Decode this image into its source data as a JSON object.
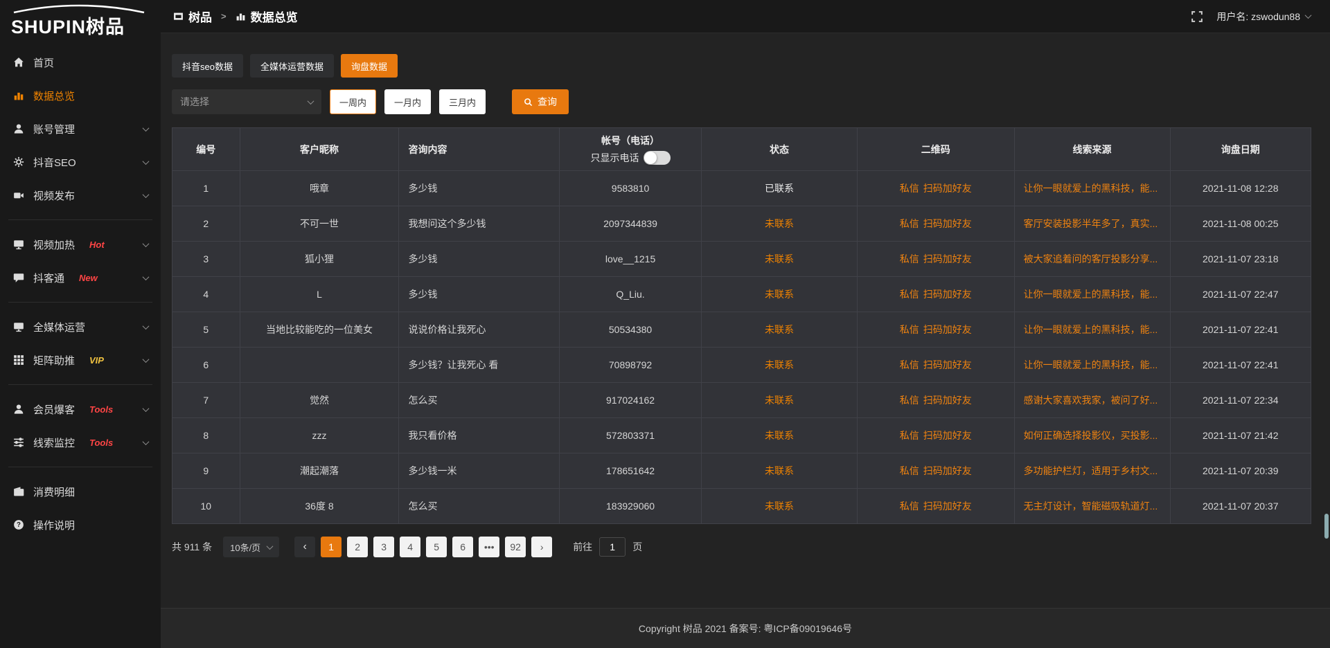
{
  "sidebar": {
    "logo": "SHUPIN树品",
    "items": [
      {
        "label": "首页",
        "icon": "home-icon"
      },
      {
        "label": "数据总览",
        "icon": "bar-chart-icon",
        "active": true
      },
      {
        "label": "账号管理",
        "icon": "user-icon",
        "chevron": true
      },
      {
        "label": "抖音SEO",
        "icon": "gear-icon",
        "chevron": true
      },
      {
        "label": "视频发布",
        "icon": "camera-icon",
        "chevron": true,
        "divider_after": true
      },
      {
        "label": "视频加热",
        "icon": "monitor-icon",
        "badge": "Hot",
        "badge_color": "#ff4545",
        "chevron": true
      },
      {
        "label": "抖客通",
        "icon": "chat-icon",
        "badge": "New",
        "badge_color": "#ff4545",
        "chevron": true,
        "divider_after": true
      },
      {
        "label": "全媒体运营",
        "icon": "monitor-icon",
        "chevron": true
      },
      {
        "label": "矩阵助推",
        "icon": "grid-icon",
        "badge": "VIP",
        "badge_color": "#f0c240",
        "chevron": true,
        "divider_after": true
      },
      {
        "label": "会员爆客",
        "icon": "user-icon",
        "badge": "Tools",
        "badge_color": "#ff4545",
        "chevron": true
      },
      {
        "label": "线索监控",
        "icon": "sliders-icon",
        "badge": "Tools",
        "badge_color": "#ff4545",
        "chevron": true,
        "divider_after": true
      },
      {
        "label": "消费明细",
        "icon": "wallet-icon"
      },
      {
        "label": "操作说明",
        "icon": "question-icon"
      }
    ]
  },
  "topbar": {
    "breadcrumb": [
      {
        "icon": "app-window-icon",
        "label": "树品"
      },
      {
        "icon": "bar-chart-icon",
        "label": "数据总览"
      }
    ],
    "separator": ">",
    "username": "用户名: zswodun88"
  },
  "tabs": [
    {
      "label": "抖音seo数据"
    },
    {
      "label": "全媒体运营数据"
    },
    {
      "label": "询盘数据",
      "active": true
    }
  ],
  "filters": {
    "select_placeholder": "请选择",
    "periods": [
      {
        "label": "一周内",
        "selected": true
      },
      {
        "label": "一月内"
      },
      {
        "label": "三月内"
      }
    ],
    "query_label": "查询"
  },
  "table": {
    "columns": [
      "编号",
      "客户昵称",
      "咨询内容",
      "帐号（电话）",
      "状态",
      "二维码",
      "线索来源",
      "询盘日期"
    ],
    "phone_toggle_label": "只显示电话",
    "qr_links": [
      "私信",
      "扫码加好友"
    ],
    "rows": [
      {
        "id": "1",
        "nickname": "哦章",
        "content": "多少钱",
        "account": "9583810",
        "status": "已联系",
        "contacted": true,
        "source": "让你一眼就爱上的黑科技，能...",
        "date": "2021-11-08 12:28"
      },
      {
        "id": "2",
        "nickname": "不可一世",
        "content": "我想问这个多少钱",
        "account": "2097344839",
        "status": "未联系",
        "contacted": false,
        "source": "客厅安装投影半年多了，真实...",
        "date": "2021-11-08 00:25"
      },
      {
        "id": "3",
        "nickname": "狐小狸",
        "content": "多少钱",
        "account": "love__1215",
        "status": "未联系",
        "contacted": false,
        "source": "被大家追着问的客厅投影分享...",
        "date": "2021-11-07 23:18"
      },
      {
        "id": "4",
        "nickname": "L",
        "content": "多少钱",
        "account": "Q_Liu.",
        "status": "未联系",
        "contacted": false,
        "source": "让你一眼就爱上的黑科技，能...",
        "date": "2021-11-07 22:47"
      },
      {
        "id": "5",
        "nickname": "当地比较能吃的一位美女",
        "content": "说说价格让我死心",
        "account": "50534380",
        "status": "未联系",
        "contacted": false,
        "source": "让你一眼就爱上的黑科技，能...",
        "date": "2021-11-07 22:41"
      },
      {
        "id": "6",
        "nickname": "",
        "content": "多少钱？让我死心 看",
        "account": "70898792",
        "status": "未联系",
        "contacted": false,
        "source": "让你一眼就爱上的黑科技，能...",
        "date": "2021-11-07 22:41"
      },
      {
        "id": "7",
        "nickname": "觉然",
        "content": "怎么买",
        "account": "917024162",
        "status": "未联系",
        "contacted": false,
        "source": "感谢大家喜欢我家，被问了好...",
        "date": "2021-11-07 22:34"
      },
      {
        "id": "8",
        "nickname": "zzz",
        "content": "我只看价格",
        "account": "572803371",
        "status": "未联系",
        "contacted": false,
        "source": "如何正确选择投影仪，买投影...",
        "date": "2021-11-07 21:42"
      },
      {
        "id": "9",
        "nickname": "潮起潮落",
        "content": "多少钱一米",
        "account": "178651642",
        "status": "未联系",
        "contacted": false,
        "source": "多功能护栏灯，适用于乡村文...",
        "date": "2021-11-07 20:39"
      },
      {
        "id": "10",
        "nickname": "36度 8",
        "content": "怎么买",
        "account": "183929060",
        "status": "未联系",
        "contacted": false,
        "source": "无主灯设计，智能磁吸轨道灯...",
        "date": "2021-11-07 20:37"
      }
    ]
  },
  "pagination": {
    "total": "共 911 条",
    "page_size": "10条/页",
    "pages": [
      "1",
      "2",
      "3",
      "4",
      "5",
      "6",
      "•••",
      "92"
    ],
    "active_page": "1",
    "prev_symbol": "‹",
    "next_symbol": "›",
    "goto_label": "前往",
    "goto_value": "1",
    "goto_suffix": "页"
  },
  "footer": {
    "copyright": "Copyright 树品 2021 备案号: 粤ICP备09019646号"
  },
  "colors": {
    "accent": "#e8790f",
    "link_orange": "#f08310",
    "badge_red": "#ff4545",
    "badge_gold": "#f0c240"
  }
}
